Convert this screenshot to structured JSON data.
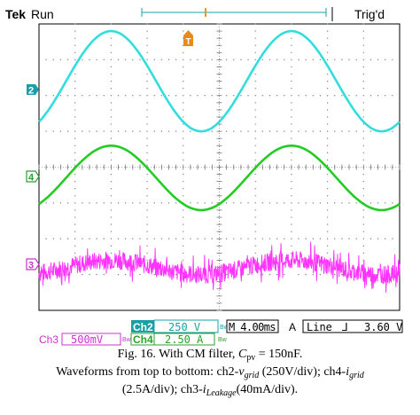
{
  "header": {
    "brand": "Tek",
    "mode": "Run",
    "trigger_marker": "T",
    "status": "Trig'd"
  },
  "channel_markers": [
    {
      "label": "2",
      "color": "#1a9fa8"
    },
    {
      "label": "4",
      "color": "#2ca02c"
    },
    {
      "label": "3",
      "color": "#cc33cc"
    }
  ],
  "readouts": {
    "ch2_name": "Ch2",
    "ch2_scale": "250 V",
    "ch2_bw": "Bw",
    "timebase": "M 4.00ms",
    "trigger_src": "A",
    "trigger_type": "Line",
    "trigger_slope": "⅃",
    "trigger_level": "3.60 V",
    "ch3_name": "Ch3",
    "ch3_scale": "500mV",
    "ch3_bw": "Bw",
    "ch4_name": "Ch4",
    "ch4_scale": "2.50 A",
    "ch4_bw": "Bw"
  },
  "colors": {
    "ch2": "#33dddd",
    "ch4": "#22cc22",
    "ch3": "#ff33ff"
  },
  "chart_data": {
    "type": "line",
    "x_unit": "ms",
    "xlim": [
      0,
      40
    ],
    "ylim_divisions": [
      -4,
      4
    ],
    "grid": true,
    "series": [
      {
        "name": "Ch2",
        "frequency_hz": 50,
        "amplitude_div": 1.4,
        "offset_div": 2.4,
        "peak_ms": [
          8,
          28
        ],
        "color": "#33dddd"
      },
      {
        "name": "Ch4",
        "frequency_hz": 50,
        "amplitude_div": 0.9,
        "offset_div": -0.3,
        "peak_ms": [
          8,
          28
        ],
        "color": "#22cc22"
      },
      {
        "name": "Ch3",
        "frequency_hz": 50,
        "amplitude_div": 0.2,
        "offset_div": -2.8,
        "noise_div": 0.25,
        "peak_ms": [
          8,
          28
        ],
        "color": "#ff33ff"
      }
    ]
  },
  "caption": {
    "line1_pre": "Fig. 16. With CM filter, ",
    "line1_var": "C",
    "line1_sub": "pv",
    "line1_post": " = 150nF.",
    "line2_a": "Waveforms from top to bottom: ch2-",
    "line2_v": "v",
    "line2_vsub": "grid",
    "line2_b": " (250V/div); ch4-",
    "line2_i": "i",
    "line2_isub": "grid",
    "line3_a": "(2.5A/div); ch3-",
    "line3_i": "i",
    "line3_isub": "Leakage",
    "line3_b": "(40mA/div)."
  }
}
